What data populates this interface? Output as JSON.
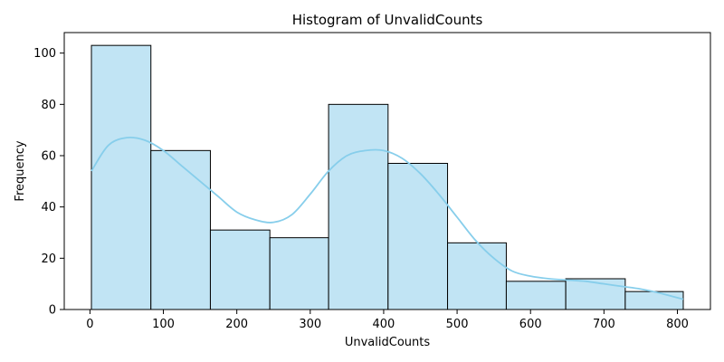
{
  "chart_data": {
    "type": "bar",
    "subtype": "histogram-with-kde",
    "title": "Histogram of UnvalidCounts",
    "xlabel": "UnvalidCounts",
    "ylabel": "Frequency",
    "xlim": [
      -35,
      845
    ],
    "ylim": [
      0,
      108
    ],
    "xticks": [
      0,
      100,
      200,
      300,
      400,
      500,
      600,
      700,
      800
    ],
    "yticks": [
      0,
      20,
      40,
      60,
      80,
      100
    ],
    "grid": false,
    "legend": "none",
    "bins": [
      {
        "start": 2,
        "end": 83,
        "value": 103
      },
      {
        "start": 83,
        "end": 164,
        "value": 62
      },
      {
        "start": 164,
        "end": 245,
        "value": 31
      },
      {
        "start": 245,
        "end": 325,
        "value": 28
      },
      {
        "start": 325,
        "end": 406,
        "value": 80
      },
      {
        "start": 406,
        "end": 487,
        "value": 57
      },
      {
        "start": 487,
        "end": 567,
        "value": 26
      },
      {
        "start": 567,
        "end": 648,
        "value": 11
      },
      {
        "start": 648,
        "end": 729,
        "value": 12
      },
      {
        "start": 729,
        "end": 808,
        "value": 7
      }
    ],
    "kde": {
      "x": [
        2,
        25,
        50,
        75,
        100,
        125,
        150,
        175,
        200,
        225,
        250,
        275,
        300,
        325,
        350,
        375,
        400,
        425,
        450,
        475,
        500,
        525,
        550,
        575,
        600,
        625,
        650,
        675,
        700,
        725,
        750,
        775,
        808
      ],
      "y": [
        54,
        64,
        67,
        66,
        62,
        56,
        50,
        44,
        38,
        35,
        34,
        37,
        45,
        54,
        60,
        62,
        62,
        59,
        53,
        45,
        36,
        27,
        20,
        15,
        13,
        12,
        11.5,
        11,
        10,
        9,
        8,
        6.5,
        4
      ]
    },
    "colors": {
      "bar_fill": "#c1e4f4",
      "bar_edge": "#000000",
      "kde_line": "#87ceeb"
    }
  }
}
